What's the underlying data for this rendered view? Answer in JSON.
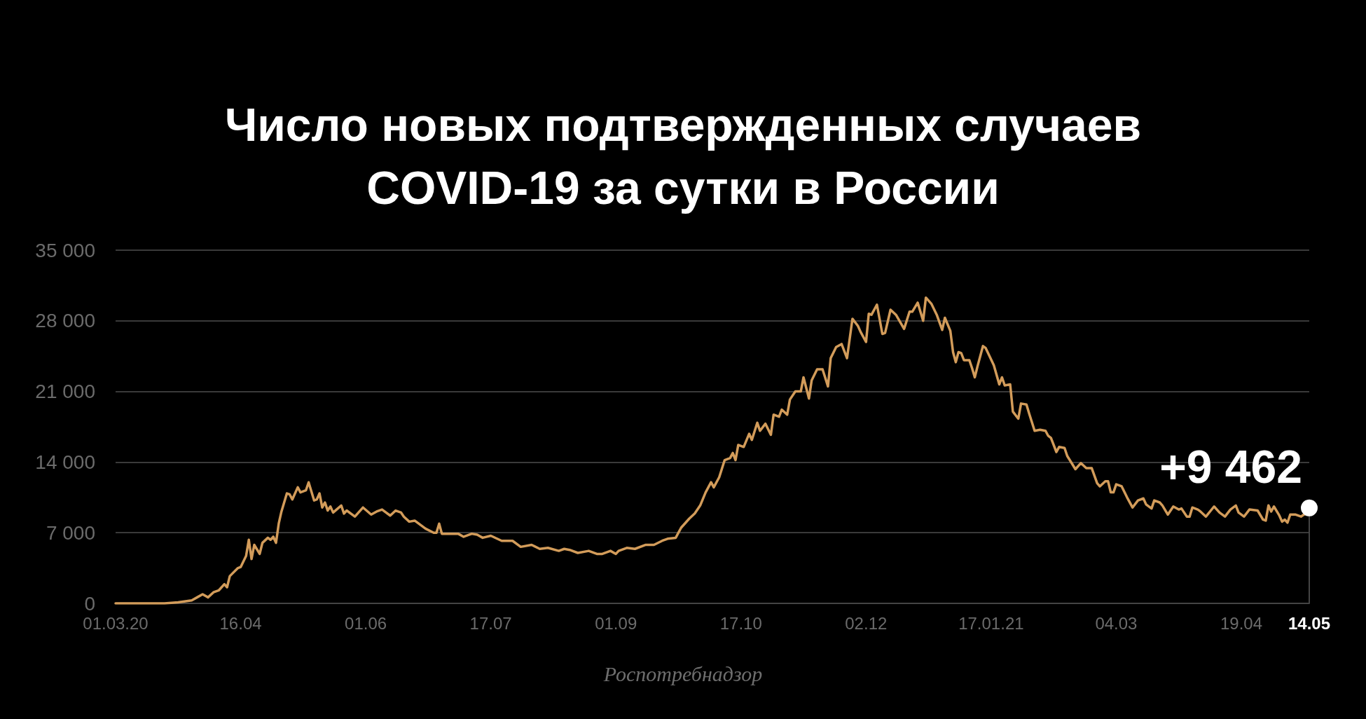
{
  "chart_data": {
    "type": "line",
    "title": "Число новых подтвержденных случаев COVID-19 за сутки в России",
    "x": [
      "2020-03-01",
      "2020-03-19",
      "2020-03-24",
      "2020-03-29",
      "2020-03-31",
      "2020-04-02",
      "2020-04-04",
      "2020-04-06",
      "2020-04-08",
      "2020-04-10",
      "2020-04-11",
      "2020-04-12",
      "2020-04-15",
      "2020-04-16",
      "2020-04-18",
      "2020-04-19",
      "2020-04-20",
      "2020-04-21",
      "2020-04-23",
      "2020-04-24",
      "2020-04-26",
      "2020-04-27",
      "2020-04-28",
      "2020-04-29",
      "2020-04-30",
      "2020-05-01",
      "2020-05-03",
      "2020-05-04",
      "2020-05-05",
      "2020-05-07",
      "2020-05-08",
      "2020-05-10",
      "2020-05-11",
      "2020-05-13",
      "2020-05-14",
      "2020-05-15",
      "2020-05-16",
      "2020-05-17",
      "2020-05-18",
      "2020-05-19",
      "2020-05-20",
      "2020-05-23",
      "2020-05-24",
      "2020-05-25",
      "2020-05-28",
      "2020-05-31",
      "2020-06-03",
      "2020-06-05",
      "2020-06-07",
      "2020-06-10",
      "2020-06-12",
      "2020-06-14",
      "2020-06-15",
      "2020-06-17",
      "2020-06-19",
      "2020-06-23",
      "2020-06-26",
      "2020-06-27",
      "2020-06-28",
      "2020-06-29",
      "2020-07-02",
      "2020-07-05",
      "2020-07-07",
      "2020-07-10",
      "2020-07-12",
      "2020-07-14",
      "2020-07-17",
      "2020-07-21",
      "2020-07-25",
      "2020-07-28",
      "2020-08-01",
      "2020-08-04",
      "2020-08-07",
      "2020-08-11",
      "2020-08-13",
      "2020-08-15",
      "2020-08-18",
      "2020-08-22",
      "2020-08-25",
      "2020-08-27",
      "2020-08-30",
      "2020-09-01",
      "2020-09-02",
      "2020-09-05",
      "2020-09-08",
      "2020-09-12",
      "2020-09-15",
      "2020-09-18",
      "2020-09-20",
      "2020-09-23",
      "2020-09-24",
      "2020-09-25",
      "2020-09-28",
      "2020-09-30",
      "2020-10-02",
      "2020-10-04",
      "2020-10-06",
      "2020-10-07",
      "2020-10-09",
      "2020-10-11",
      "2020-10-13",
      "2020-10-14",
      "2020-10-15",
      "2020-10-16",
      "2020-10-18",
      "2020-10-20",
      "2020-10-21",
      "2020-10-23",
      "2020-10-24",
      "2020-10-26",
      "2020-10-28",
      "2020-10-29",
      "2020-10-31",
      "2020-11-01",
      "2020-11-03",
      "2020-11-04",
      "2020-11-06",
      "2020-11-08",
      "2020-11-09",
      "2020-11-11",
      "2020-11-12",
      "2020-11-14",
      "2020-11-16",
      "2020-11-18",
      "2020-11-19",
      "2020-11-21",
      "2020-11-23",
      "2020-11-25",
      "2020-11-27",
      "2020-11-29",
      "2020-11-30",
      "2020-12-02",
      "2020-12-03",
      "2020-12-04",
      "2020-12-06",
      "2020-12-08",
      "2020-12-09",
      "2020-12-11",
      "2020-12-13",
      "2020-12-16",
      "2020-12-18",
      "2020-12-19",
      "2020-12-21",
      "2020-12-23",
      "2020-12-24",
      "2020-12-26",
      "2020-12-28",
      "2020-12-30",
      "2020-12-31",
      "2021-01-02",
      "2021-01-03",
      "2021-01-04",
      "2021-01-05",
      "2021-01-06",
      "2021-01-07",
      "2021-01-09",
      "2021-01-10",
      "2021-01-11",
      "2021-01-12",
      "2021-01-14",
      "2021-01-15",
      "2021-01-18",
      "2021-01-20",
      "2021-01-21",
      "2021-01-22",
      "2021-01-24",
      "2021-01-25",
      "2021-01-27",
      "2021-01-28",
      "2021-01-30",
      "2021-01-31",
      "2021-02-02",
      "2021-02-04",
      "2021-02-06",
      "2021-02-07",
      "2021-02-08",
      "2021-02-10",
      "2021-02-11",
      "2021-02-13",
      "2021-02-14",
      "2021-02-17",
      "2021-02-19",
      "2021-02-21",
      "2021-02-23",
      "2021-02-25",
      "2021-02-26",
      "2021-02-28",
      "2021-03-01",
      "2021-03-02",
      "2021-03-03",
      "2021-03-04",
      "2021-03-06",
      "2021-03-08",
      "2021-03-10",
      "2021-03-12",
      "2021-03-14",
      "2021-03-15",
      "2021-03-17",
      "2021-03-18",
      "2021-03-20",
      "2021-03-21",
      "2021-03-23",
      "2021-03-25",
      "2021-03-27",
      "2021-03-28",
      "2021-03-30",
      "2021-03-31",
      "2021-04-01",
      "2021-04-03",
      "2021-04-04",
      "2021-04-06",
      "2021-04-09",
      "2021-04-11",
      "2021-04-13",
      "2021-04-15",
      "2021-04-17",
      "2021-04-18",
      "2021-04-20",
      "2021-04-22",
      "2021-04-25",
      "2021-04-27",
      "2021-04-28",
      "2021-04-29",
      "2021-04-30",
      "2021-05-01",
      "2021-05-03",
      "2021-05-04",
      "2021-05-05",
      "2021-05-06",
      "2021-05-07",
      "2021-05-09",
      "2021-05-11",
      "2021-05-12",
      "2021-05-13",
      "2021-05-14"
    ],
    "values": [
      0,
      0,
      100,
      300,
      600,
      900,
      600,
      1100,
      1300,
      1900,
      1600,
      2700,
      3500,
      3600,
      4700,
      6300,
      4400,
      5800,
      4900,
      6000,
      6500,
      6300,
      6600,
      6000,
      7900,
      9100,
      10900,
      10800,
      10300,
      11500,
      11000,
      11200,
      12000,
      10200,
      10300,
      10900,
      9500,
      10000,
      9200,
      9600,
      9000,
      9700,
      8900,
      9200,
      8600,
      9500,
      8800,
      9100,
      9300,
      8700,
      9200,
      9000,
      8600,
      8100,
      8200,
      7400,
      7000,
      7000,
      7900,
      6900,
      6900,
      6900,
      6600,
      6900,
      6800,
      6500,
      6700,
      6200,
      6200,
      5600,
      5800,
      5400,
      5500,
      5200,
      5400,
      5300,
      5000,
      5200,
      4900,
      4900,
      5200,
      4900,
      5200,
      5500,
      5400,
      5800,
      5800,
      6200,
      6400,
      6500,
      7000,
      7500,
      8400,
      8900,
      9700,
      11000,
      12000,
      11500,
      12500,
      14200,
      14400,
      14900,
      14200,
      15700,
      15500,
      16800,
      16200,
      17900,
      17100,
      17800,
      16700,
      18700,
      18500,
      19200,
      18700,
      20200,
      21000,
      21000,
      22400,
      20300,
      22100,
      23200,
      23200,
      21500,
      24300,
      25400,
      25700,
      24300,
      28200,
      27500,
      26900,
      25900,
      28700,
      28600,
      29600,
      26700,
      26800,
      29100,
      28600,
      27200,
      28900,
      28900,
      29800,
      28000,
      30300,
      29700,
      28600,
      27100,
      28300,
      27000,
      24900,
      23900,
      24900,
      24800,
      24100,
      24100,
      23300,
      22400,
      23500,
      25500,
      25300,
      23600,
      21700,
      22400,
      21600,
      21700,
      19000,
      18300,
      19800,
      19700,
      18800,
      17100,
      17200,
      17100,
      16600,
      16400,
      15000,
      15500,
      15400,
      14600,
      13300,
      13900,
      13400,
      13400,
      11900,
      11600,
      12100,
      12100,
      11000,
      11000,
      11800,
      11600,
      10500,
      9500,
      10200,
      10400,
      9800,
      9400,
      10200,
      10000,
      9700,
      8800,
      9600,
      9300,
      9400,
      8600,
      8600,
      9500,
      9300,
      9100,
      8600,
      9600,
      9000,
      8600,
      9300,
      9700,
      9000,
      8600,
      9300,
      9200,
      8300,
      8200,
      9700,
      9100,
      9600,
      8700,
      8100,
      8300,
      8000,
      8800,
      8800,
      8600,
      8800,
      8900,
      9462
    ],
    "color": "#d39c5a",
    "xlim": [
      "2020-03-01",
      "2021-05-14"
    ],
    "xticks": [
      {
        "value": "2020-03-01",
        "label": "01.03.20"
      },
      {
        "value": "2020-04-16",
        "label": "16.04"
      },
      {
        "value": "2020-06-01",
        "label": "01.06"
      },
      {
        "value": "2020-07-17",
        "label": "17.07"
      },
      {
        "value": "2020-09-01",
        "label": "01.09"
      },
      {
        "value": "2020-10-17",
        "label": "17.10"
      },
      {
        "value": "2020-12-02",
        "label": "02.12"
      },
      {
        "value": "2021-01-17",
        "label": "17.01.21"
      },
      {
        "value": "2021-03-04",
        "label": "04.03"
      },
      {
        "value": "2021-04-19",
        "label": "19.04"
      },
      {
        "value": "2021-05-14",
        "label": "14.05"
      }
    ],
    "ylim": [
      0,
      35000
    ],
    "yticks": [
      0,
      {
        "value": 7000,
        "label": "7 000"
      },
      {
        "value": 14000,
        "label": "14 000"
      },
      {
        "value": 21000,
        "label": "21 000"
      },
      {
        "value": 28000,
        "label": "28 000"
      },
      {
        "value": 35000,
        "label": "35 000"
      }
    ],
    "grid": "y",
    "marker": "none",
    "line_style": "solid",
    "annotations": [
      {
        "text": "+9 462",
        "x": "2021-05-14",
        "y": 9462
      },
      "Роспотребнадзор"
    ]
  }
}
